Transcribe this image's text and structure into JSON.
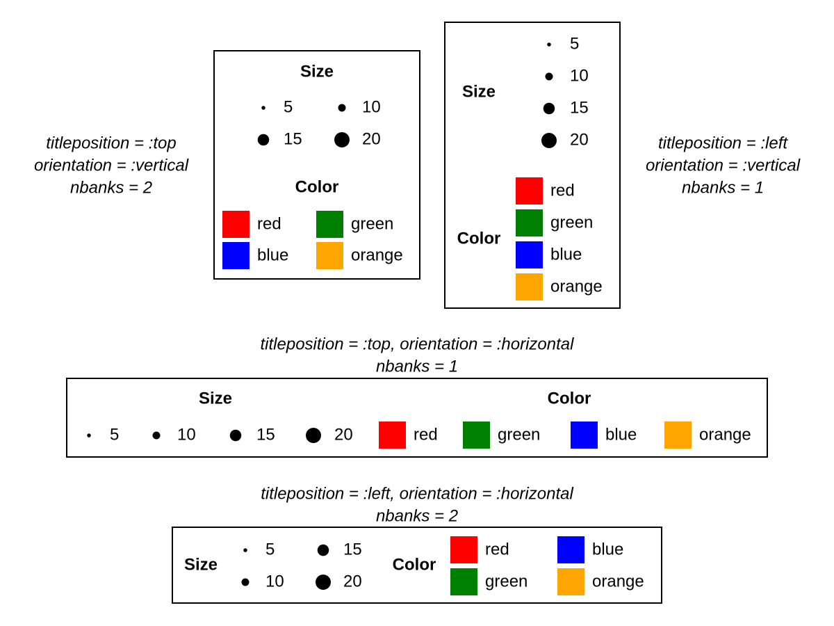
{
  "legends": [
    {
      "caption": [
        "titleposition = :top",
        "orientation = :vertical",
        "nbanks = 2"
      ],
      "groups": [
        {
          "title": "Size",
          "entries": [
            5,
            10,
            15,
            20
          ]
        },
        {
          "title": "Color",
          "entries": [
            {
              "label": "red",
              "color": "#ff0000"
            },
            {
              "label": "green",
              "color": "#008000"
            },
            {
              "label": "blue",
              "color": "#0000ff"
            },
            {
              "label": "orange",
              "color": "#ffa500"
            }
          ]
        }
      ]
    },
    {
      "caption": [
        "titleposition = :left",
        "orientation = :vertical",
        "nbanks = 1"
      ],
      "groups": [
        {
          "title": "Size",
          "entries": [
            5,
            10,
            15,
            20
          ]
        },
        {
          "title": "Color",
          "entries": [
            {
              "label": "red",
              "color": "#ff0000"
            },
            {
              "label": "green",
              "color": "#008000"
            },
            {
              "label": "blue",
              "color": "#0000ff"
            },
            {
              "label": "orange",
              "color": "#ffa500"
            }
          ]
        }
      ]
    },
    {
      "caption": [
        "titleposition = :top, orientation = :horizontal",
        "nbanks = 1"
      ],
      "groups": [
        {
          "title": "Size",
          "entries": [
            5,
            10,
            15,
            20
          ]
        },
        {
          "title": "Color",
          "entries": [
            {
              "label": "red",
              "color": "#ff0000"
            },
            {
              "label": "green",
              "color": "#008000"
            },
            {
              "label": "blue",
              "color": "#0000ff"
            },
            {
              "label": "orange",
              "color": "#ffa500"
            }
          ]
        }
      ]
    },
    {
      "caption": [
        "titleposition = :left, orientation = :horizontal",
        "nbanks = 2"
      ],
      "groups": [
        {
          "title": "Size",
          "entries": [
            5,
            10,
            15,
            20
          ]
        },
        {
          "title": "Color",
          "entries": [
            {
              "label": "red",
              "color": "#ff0000"
            },
            {
              "label": "green",
              "color": "#008000"
            },
            {
              "label": "blue",
              "color": "#0000ff"
            },
            {
              "label": "orange",
              "color": "#ffa500"
            }
          ]
        }
      ]
    }
  ]
}
